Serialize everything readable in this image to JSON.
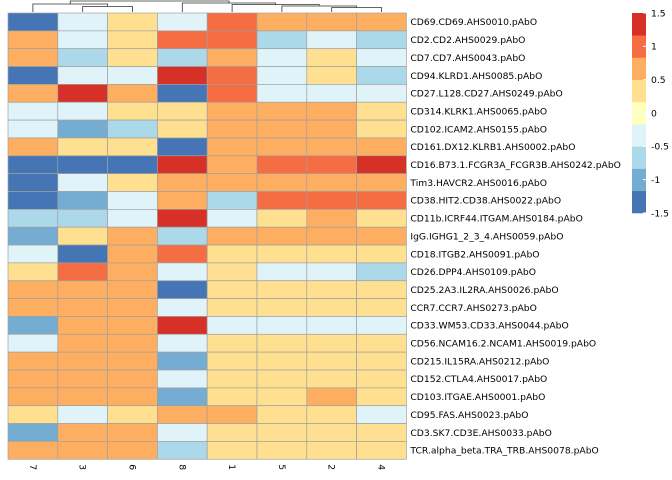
{
  "chart_data": {
    "type": "heatmap",
    "columns": [
      "7",
      "3",
      "6",
      "8",
      "1",
      "5",
      "2",
      "4"
    ],
    "rows": [
      "CD69.CD69.AHS0010.pAbO",
      "CD2.CD2.AHS0029.pAbO",
      "CD7.CD7.AHS0043.pAbO",
      "CD94.KLRD1.AHS0085.pAbO",
      "CD27.L128.CD27.AHS0249.pAbO",
      "CD314.KLRK1.AHS0065.pAbO",
      "CD102.ICAM2.AHS0155.pAbO",
      "CD161.DX12.KLRB1.AHS0002.pAbO",
      "CD16.B73.1.FCGR3A_FCGR3B.AHS0242.pAbO",
      "Tim3.HAVCR2.AHS0016.pAbO",
      "CD38.HIT2.CD38.AHS0022.pAbO",
      "CD11b.ICRF44.ITGAM.AHS0184.pAbO",
      "IgG.IGHG1_2_3_4.AHS0059.pAbO",
      "CD18.ITGB2.AHS0091.pAbO",
      "CD26.DPP4.AHS0109.pAbO",
      "CD25.2A3.IL2RA.AHS0026.pAbO",
      "CCR7.CCR7.AHS0273.pAbO",
      "CD33.WM53.CD33.AHS0044.pAbO",
      "CD56.NCAM16.2.NCAM1.AHS0019.pAbO",
      "CD215.IL15RA.AHS0212.pAbO",
      "CD152.CTLA4.AHS0017.pAbO",
      "CD103.ITGAE.AHS0001.pAbO",
      "CD95.FAS.AHS0023.pAbO",
      "CD3.SK7.CD3E.AHS0033.pAbO",
      "TCR.alpha_beta.TRA_TRB.AHS0078.pAbO"
    ],
    "values": [
      [
        -1.5,
        -0.5,
        0.25,
        -0.5,
        1.0,
        0.75,
        0.5,
        0.5
      ],
      [
        0.5,
        -0.5,
        0.25,
        1.0,
        1.0,
        -0.75,
        -0.5,
        -0.75
      ],
      [
        0.75,
        -0.75,
        0.25,
        -0.75,
        0.75,
        -0.5,
        0.25,
        -0.5
      ],
      [
        -1.25,
        -0.5,
        -0.25,
        1.5,
        1.0,
        -0.5,
        0.25,
        -0.75
      ],
      [
        0.5,
        1.5,
        0.75,
        -1.5,
        1.0,
        -0.25,
        -0.25,
        -0.25
      ],
      [
        -0.5,
        -0.25,
        0.25,
        0.25,
        0.5,
        0.5,
        0.5,
        0.25
      ],
      [
        -0.25,
        -1.0,
        -0.75,
        0.25,
        0.5,
        0.5,
        0.5,
        0.25
      ],
      [
        0.75,
        0.25,
        0.25,
        -1.5,
        0.5,
        0.5,
        0.5,
        0.5
      ],
      [
        -1.5,
        -1.5,
        -1.5,
        1.5,
        0.5,
        1.0,
        1.0,
        1.5
      ],
      [
        -1.5,
        -0.5,
        0.25,
        0.75,
        0.5,
        0.75,
        0.75,
        0.5
      ],
      [
        -1.5,
        -1.0,
        -0.5,
        0.75,
        -0.75,
        1.0,
        1.0,
        1.0
      ],
      [
        -0.75,
        -0.75,
        -0.25,
        1.5,
        -0.5,
        0.25,
        0.5,
        0.25
      ],
      [
        -1.0,
        0.25,
        0.5,
        -0.75,
        0.5,
        0.5,
        0.5,
        0.75
      ],
      [
        -0.25,
        -1.5,
        0.5,
        1.0,
        0.25,
        0.25,
        0.25,
        0.25
      ],
      [
        0.25,
        1.0,
        0.75,
        -0.25,
        0.25,
        -0.25,
        -0.5,
        -0.75
      ],
      [
        0.5,
        0.75,
        0.5,
        -1.5,
        0.25,
        0.25,
        0.25,
        0.25
      ],
      [
        0.5,
        0.5,
        0.5,
        -0.5,
        0.25,
        0.25,
        0.25,
        0.25
      ],
      [
        -1.0,
        0.75,
        0.5,
        1.5,
        -0.25,
        -0.25,
        -0.25,
        -0.25
      ],
      [
        -0.25,
        0.75,
        0.75,
        -0.5,
        0.25,
        0.25,
        0.25,
        0.25
      ],
      [
        0.75,
        0.5,
        0.5,
        -1.0,
        0.25,
        0.25,
        0.25,
        0.25
      ],
      [
        0.5,
        0.5,
        0.5,
        -0.25,
        0.25,
        0.25,
        0.25,
        0.25
      ],
      [
        0.5,
        0.5,
        0.5,
        -1.0,
        0.25,
        0.25,
        0.5,
        0.25
      ],
      [
        0.25,
        -0.25,
        0.25,
        0.75,
        0.5,
        0.25,
        0.25,
        -0.25
      ],
      [
        -1.0,
        0.5,
        0.5,
        -0.25,
        0.25,
        0.25,
        0.25,
        0.25
      ],
      [
        0.5,
        0.5,
        0.5,
        -0.75,
        0.25,
        0.25,
        0.25,
        0.25
      ]
    ],
    "scale": {
      "min": -1.5,
      "max": 1.5,
      "ticks": [
        1.5,
        1,
        0.5,
        0,
        -0.5,
        -1,
        -1.5
      ],
      "colors": [
        "#4575b4",
        "#74add1",
        "#abd9e9",
        "#e0f3f8",
        "#ffffbf",
        "#fee090",
        "#fdae61",
        "#f46d43",
        "#d73027"
      ]
    },
    "grid_color": "#a0a0a0",
    "dendrogram": "top, columns"
  }
}
